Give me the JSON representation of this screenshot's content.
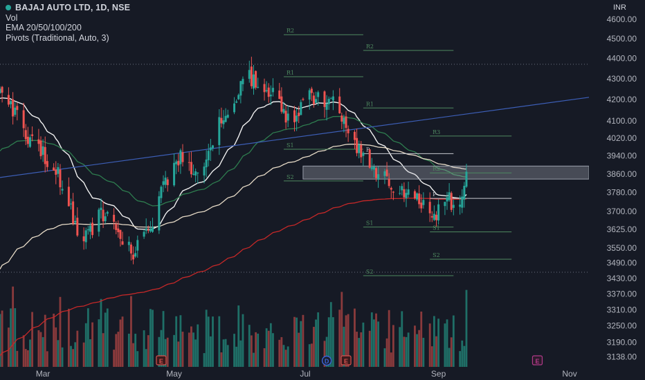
{
  "header": {
    "symbol_title": "BAJAJ AUTO LTD, 1D, NSE",
    "indicators": [
      "Vol",
      "EMA 20/50/100/200",
      "Pivots (Traditional, Auto, 3)"
    ]
  },
  "colors": {
    "background": "#161a25",
    "up": "#26a69a",
    "down": "#ef5350",
    "ema20": "#f0f0f0",
    "ema50": "#2e7d4f",
    "ema100": "#e8dcc8",
    "ema200": "#c62828",
    "trendline": "#3d5fb8",
    "pivot": "#4f8a60"
  },
  "chart_data": {
    "type": "candlestick",
    "currency": "INR",
    "y_scale": "log",
    "ylim": [
      3100,
      4650
    ],
    "y_ticks": [
      "4600.00",
      "4500.00",
      "4400.00",
      "4300.00",
      "4200.00",
      "4100.00",
      "4020.00",
      "3940.00",
      "3860.00",
      "3780.00",
      "3700.00",
      "3625.00",
      "3550.00",
      "3490.00",
      "3430.00",
      "3370.00",
      "3310.00",
      "3250.00",
      "3190.00",
      "3138.00"
    ],
    "x_ticks": [
      "Mar",
      "May",
      "Jul",
      "Sep",
      "Nov"
    ],
    "date_range": [
      "2023-02-09",
      "2023-11-10"
    ],
    "last_bar_date": "2023-09-14",
    "anchors": [
      [
        "2023-02-09",
        4230
      ],
      [
        "2023-02-16",
        4150
      ],
      [
        "2023-02-24",
        4000
      ],
      [
        "2023-03-02",
        3930
      ],
      [
        "2023-03-09",
        3840
      ],
      [
        "2023-03-16",
        3650
      ],
      [
        "2023-03-20",
        3580
      ],
      [
        "2023-03-28",
        3700
      ],
      [
        "2023-04-06",
        3610
      ],
      [
        "2023-04-12",
        3525
      ],
      [
        "2023-04-20",
        3650
      ],
      [
        "2023-04-26",
        3800
      ],
      [
        "2023-05-04",
        3930
      ],
      [
        "2023-05-10",
        3840
      ],
      [
        "2023-05-18",
        3990
      ],
      [
        "2023-05-25",
        4150
      ],
      [
        "2023-06-01",
        4250
      ],
      [
        "2023-06-05",
        4310
      ],
      [
        "2023-06-12",
        4270
      ],
      [
        "2023-06-20",
        4160
      ],
      [
        "2023-06-26",
        4080
      ],
      [
        "2023-06-30",
        4210
      ],
      [
        "2023-07-10",
        4200
      ],
      [
        "2023-07-14",
        4180
      ],
      [
        "2023-07-21",
        4040
      ],
      [
        "2023-07-28",
        3960
      ],
      [
        "2023-08-03",
        3870
      ],
      [
        "2023-08-10",
        3810
      ],
      [
        "2023-08-17",
        3760
      ],
      [
        "2023-08-24",
        3730
      ],
      [
        "2023-08-29",
        3680
      ],
      [
        "2023-09-04",
        3750
      ],
      [
        "2023-09-11",
        3720
      ],
      [
        "2023-09-14",
        3870
      ]
    ],
    "earnings_markers": [
      {
        "date": "2023-04-25",
        "label": "E"
      },
      {
        "date": "2023-07-11",
        "label": "D"
      },
      {
        "date": "2023-07-20",
        "label": "E"
      },
      {
        "date": "2023-10-17",
        "label": "E"
      }
    ],
    "pivots": [
      {
        "start": "2023-06-21",
        "end": "2023-07-28",
        "levels": {
          "R1": 4310,
          "S1": 3970,
          "S2": 3830
        }
      },
      {
        "start": "2023-07-28",
        "end": "2023-09-08",
        "levels": {
          "R2": 4440,
          "R1": 4160,
          "P": 3950,
          "S1": 3635,
          "S2": 3440
        }
      },
      {
        "start": "2023-08-28",
        "end": "2023-10-05",
        "levels": {
          "R3": 4030,
          "R2": 3865,
          "P": 3755,
          "S1": 3615,
          "S2": 3505
        }
      },
      {
        "start": "2023-06-21",
        "end": "2023-07-28",
        "levels": {
          "R2": 4520
        }
      }
    ],
    "trendline": {
      "points": [
        [
          "2023-02-09",
          3845
        ],
        [
          "2023-11-24",
          4230
        ]
      ]
    },
    "zone": {
      "start": "2023-06-30",
      "end": "2023-11-24",
      "top": 3895,
      "bottom": 3838
    }
  }
}
